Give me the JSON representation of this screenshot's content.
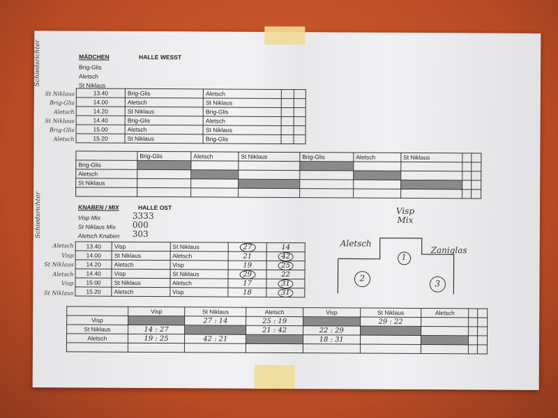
{
  "maedchen": {
    "title": "MÄDCHEN",
    "hall": "HALLE WESST",
    "teams": [
      "Brig-Glis",
      "Aletsch",
      "St Niklaus"
    ],
    "referee_label": "Schiedsrichter",
    "referees": [
      "St Niklaus",
      "Brig-Glis",
      "Aletsch",
      "St Niklaus",
      "Brig-Glis",
      "Aletsch"
    ],
    "games": [
      [
        "13.40",
        "Brig-Glis",
        "Aletsch"
      ],
      [
        "14.00",
        "Aletsch",
        "St Niklaus"
      ],
      [
        "14.20",
        "St Niklaus",
        "Brig-Glis"
      ],
      [
        "14.40",
        "Brig-Glis",
        "Aletsch"
      ],
      [
        "15.00",
        "Aletsch",
        "St Niklaus"
      ],
      [
        "15.20",
        "St Niklaus",
        "Brig-Glis"
      ]
    ],
    "matrix_header": [
      "Brig-Glis",
      "Aletsch",
      "St Niklaus",
      "Brig-Glis",
      "Aletsch",
      "St Niklaus"
    ],
    "matrix_rows": [
      "Brig-Glis",
      "Aletsch",
      "St Niklaus"
    ]
  },
  "knaben": {
    "title": "KNABEN / MIX",
    "hall": "HALLE OST",
    "teams": [
      "Visp Mix",
      "St Niklaus Mix",
      "Aletsch Knaben"
    ],
    "team_notes": [
      "3333",
      "000",
      "303"
    ],
    "referee_label": "Schiedsrichter",
    "referees": [
      "Aletsch",
      "Visp",
      "St Niklaus",
      "Aletsch",
      "Visp",
      "St Niklaus"
    ],
    "games": [
      [
        "13.40",
        "Visp",
        "St Niklaus",
        "27",
        "14"
      ],
      [
        "14.00",
        "St Niklaus",
        "Aletsch",
        "21",
        "42"
      ],
      [
        "14.20",
        "Aletsch",
        "Visp",
        "19",
        "25"
      ],
      [
        "14.40",
        "Visp",
        "St Niklaus",
        "29",
        "22"
      ],
      [
        "15.00",
        "St Niklaus",
        "Aletsch",
        "17",
        "31"
      ],
      [
        "15.20",
        "Aletsch",
        "Visp",
        "18",
        "31"
      ]
    ],
    "matrix_header": [
      "Visp",
      "St Niklaus",
      "Aletsch",
      "Visp",
      "St Niklaus",
      "Aletsch"
    ],
    "matrix_rows": [
      "Visp",
      "St Niklaus",
      "Aletsch"
    ],
    "matrix_values": [
      [
        "",
        "27 : 14",
        "25 : 19",
        "",
        "29 : 22",
        ""
      ],
      [
        "14 : 27",
        "",
        "21 : 42",
        "22 : 29",
        "",
        ""
      ],
      [
        "19 : 25",
        "42 : 21",
        "",
        "18 : 31",
        "",
        ""
      ]
    ]
  },
  "podium": {
    "first": "Visp Mix",
    "first_rank": "1",
    "second": "Aletsch",
    "second_rank": "2",
    "third": "Zaniglas",
    "third_rank": "3"
  }
}
